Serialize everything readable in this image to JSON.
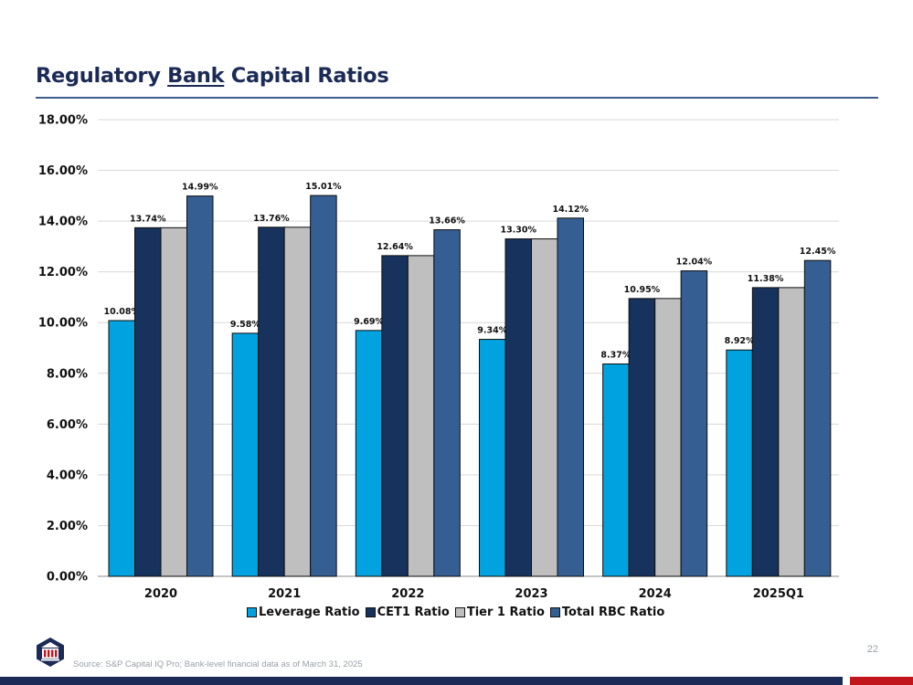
{
  "header": {
    "title_part1": "Regulatory ",
    "title_underlined": "Bank",
    "title_part2": " Capital Ratios"
  },
  "chart_data": {
    "type": "bar",
    "title": "",
    "xlabel": "",
    "ylabel": "",
    "categories": [
      "2020",
      "2021",
      "2022",
      "2023",
      "2024",
      "2025Q1"
    ],
    "series": [
      {
        "name": "Leverage Ratio",
        "color": "#00a3e0",
        "values": [
          10.08,
          9.58,
          9.69,
          9.34,
          8.37,
          8.92
        ],
        "labels": [
          "10.08%",
          "9.58%",
          "9.69%",
          "9.34%",
          "8.37%",
          "8.92%"
        ]
      },
      {
        "name": "CET1 Ratio",
        "color": "#17325c",
        "values": [
          13.74,
          13.76,
          12.64,
          13.3,
          10.95,
          11.38
        ],
        "labels": [
          "13.74%",
          "13.76%",
          "12.64%",
          "13.30%",
          "10.95%",
          "11.38%"
        ]
      },
      {
        "name": "Tier 1 Ratio",
        "color": "#bfbfbf",
        "values": [
          13.74,
          13.76,
          12.64,
          13.3,
          10.95,
          11.38
        ],
        "labels": [
          "",
          "",
          "",
          "",
          "",
          ""
        ]
      },
      {
        "name": "Total RBC Ratio",
        "color": "#355e93",
        "values": [
          14.99,
          15.01,
          13.66,
          14.12,
          12.04,
          12.45
        ],
        "labels": [
          "14.99%",
          "15.01%",
          "13.66%",
          "14.12%",
          "12.04%",
          "12.45%"
        ]
      }
    ],
    "ylim": [
      0,
      18
    ],
    "y_ticks": [
      0,
      2,
      4,
      6,
      8,
      10,
      12,
      14,
      16,
      18
    ],
    "y_tick_labels": [
      "0.00%",
      "2.00%",
      "4.00%",
      "6.00%",
      "8.00%",
      "10.00%",
      "12.00%",
      "14.00%",
      "16.00%",
      "18.00%"
    ],
    "grid": true,
    "legend_position": "bottom"
  },
  "footer": {
    "source": "Source: S&P Capital IQ Pro; Bank-level financial data as of March 31, 2025",
    "page_number": "22",
    "logo_icon": "bank-building-icon",
    "accent_navy": "#1b2a56",
    "accent_red": "#c0161c"
  }
}
